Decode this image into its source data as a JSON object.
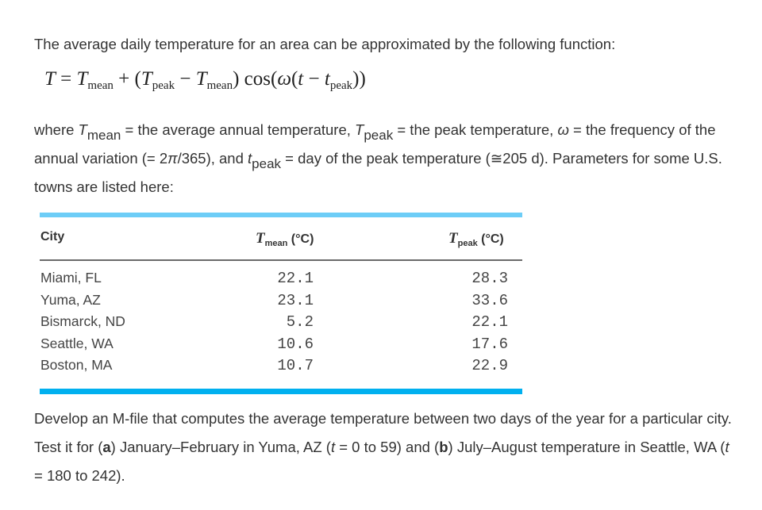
{
  "intro": "The average daily temperature for an area can be approximated by the following function:",
  "equation": {
    "T": "T",
    "eq": " = ",
    "Tmean": "T",
    "mean_sub": "mean",
    "plus": " + (",
    "Tpeak": "T",
    "peak_sub": "peak",
    "minus": " − ",
    "Tmean2": "T",
    "mean_sub2": "mean",
    "cos": ") cos(",
    "omega": "ω",
    "paren": "(",
    "t": "t",
    "minus2": " − ",
    "tpeak": "t",
    "peak_sub2": "peak",
    "close": "))"
  },
  "definitions": {
    "p1": "where ",
    "Tmean": "T",
    "mean_sub": "mean",
    "p2": " = the average annual temperature, ",
    "Tpeak": "T",
    "peak_sub": "peak",
    "p3": " = the peak temperature, ",
    "omega": "ω",
    "p4": " = the frequency of the annual variation (= 2",
    "pi": "π",
    "p5": "/365), and ",
    "tpeak": "t",
    "tpeak_sub": "peak",
    "p6": " = day of the peak temperature (≅205 d). Parameters for some U.S. towns are listed here:"
  },
  "table": {
    "headers": {
      "city": "City",
      "mean_T": "T",
      "mean_sub": "mean",
      "mean_unit": " (°C)",
      "peak_T": "T",
      "peak_sub": "peak",
      "peak_unit": " (°C)"
    },
    "rows": [
      {
        "city": "Miami, FL",
        "tmean": "22.1",
        "tpeak": "28.3"
      },
      {
        "city": "Yuma, AZ",
        "tmean": "23.1",
        "tpeak": "33.6"
      },
      {
        "city": "Bismarck, ND",
        "tmean": "5.2",
        "tpeak": "22.1"
      },
      {
        "city": "Seattle, WA",
        "tmean": "10.6",
        "tpeak": "17.6"
      },
      {
        "city": "Boston, MA",
        "tmean": "10.7",
        "tpeak": "22.9"
      }
    ],
    "colors": {
      "top_bar": "#6dcdf7",
      "bottom_bar": "#00b0ef",
      "header_rule": "#6a6a6a"
    }
  },
  "task": {
    "p1": "Develop an M-file that computes the average temperature between two days of the year for a particular city. Test it for (",
    "a": "a",
    "p2": ") January–February in Yuma, AZ (",
    "t1": "t",
    "p3": " = 0 to 59) and (",
    "b": "b",
    "p4": ") July–August temperature in Seattle, WA (",
    "t2": "t",
    "p5": " = 180 to 242)."
  }
}
